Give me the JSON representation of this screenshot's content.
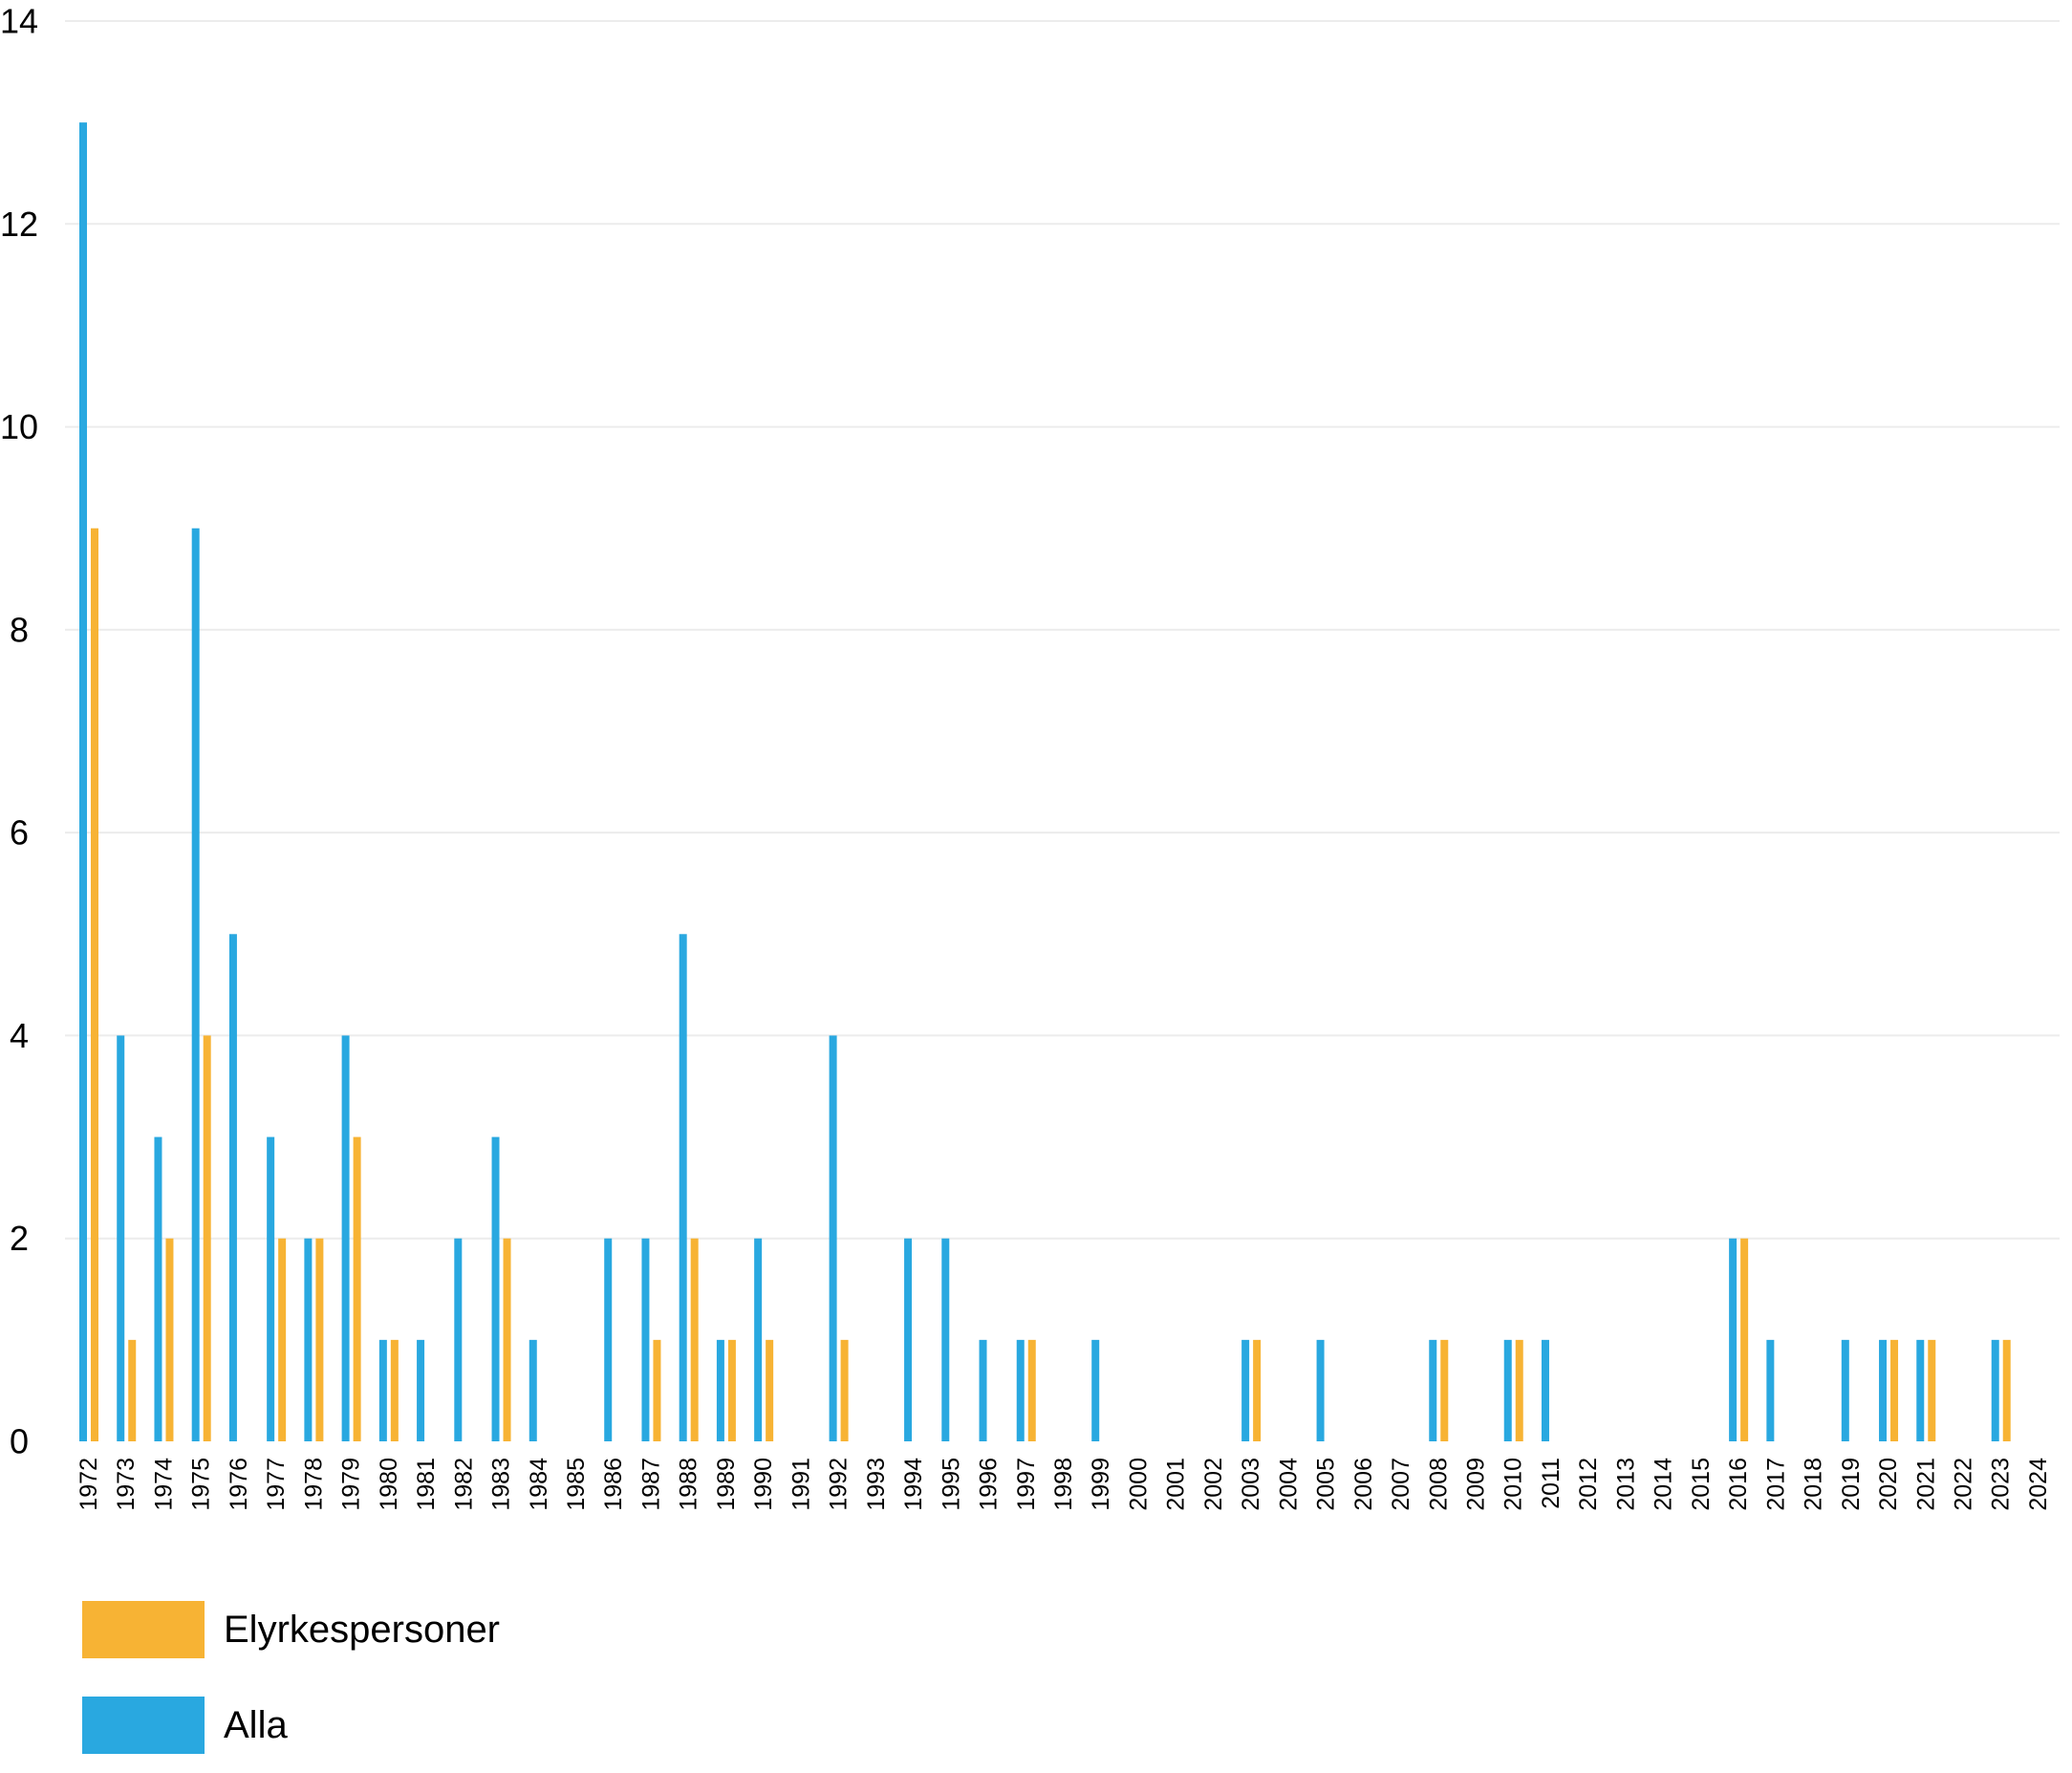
{
  "chart_data": {
    "type": "bar",
    "title": "",
    "xlabel": "",
    "ylabel": "",
    "ylim": [
      0,
      14
    ],
    "yticks": [
      0,
      2,
      4,
      6,
      8,
      10,
      12,
      14
    ],
    "grid": true,
    "legend_position": "bottom-left",
    "categories": [
      "1972",
      "1973",
      "1974",
      "1975",
      "1976",
      "1977",
      "1978",
      "1979",
      "1980",
      "1981",
      "1982",
      "1983",
      "1984",
      "1985",
      "1986",
      "1987",
      "1988",
      "1989",
      "1990",
      "1991",
      "1992",
      "1993",
      "1994",
      "1995",
      "1996",
      "1997",
      "1998",
      "1999",
      "2000",
      "2001",
      "2002",
      "2003",
      "2004",
      "2005",
      "2006",
      "2007",
      "2008",
      "2009",
      "2010",
      "2011",
      "2012",
      "2013",
      "2014",
      "2015",
      "2016",
      "2017",
      "2018",
      "2019",
      "2020",
      "2021",
      "2022",
      "2023",
      "2024"
    ],
    "series": [
      {
        "name": "Alla",
        "color": "#29a8e0",
        "values": [
          13,
          4,
          3,
          9,
          5,
          3,
          2,
          4,
          1,
          1,
          2,
          3,
          1,
          0,
          2,
          2,
          5,
          1,
          2,
          0,
          4,
          0,
          2,
          2,
          1,
          1,
          0,
          1,
          0,
          0,
          0,
          1,
          0,
          1,
          0,
          0,
          1,
          0,
          1,
          1,
          0,
          0,
          0,
          0,
          2,
          1,
          0,
          1,
          1,
          1,
          0,
          1,
          0
        ]
      },
      {
        "name": "Elyrkespersoner",
        "color": "#f7b334",
        "values": [
          9,
          1,
          2,
          4,
          0,
          2,
          2,
          3,
          1,
          0,
          0,
          2,
          0,
          0,
          0,
          1,
          2,
          1,
          1,
          0,
          1,
          0,
          0,
          0,
          0,
          1,
          0,
          0,
          0,
          0,
          0,
          1,
          0,
          0,
          0,
          0,
          1,
          0,
          1,
          0,
          0,
          0,
          0,
          0,
          2,
          0,
          0,
          0,
          1,
          1,
          0,
          1,
          0
        ]
      }
    ],
    "legend": [
      {
        "label": "Elyrkespersoner",
        "color": "#f7b334"
      },
      {
        "label": "Alla",
        "color": "#29a8e0"
      }
    ]
  }
}
